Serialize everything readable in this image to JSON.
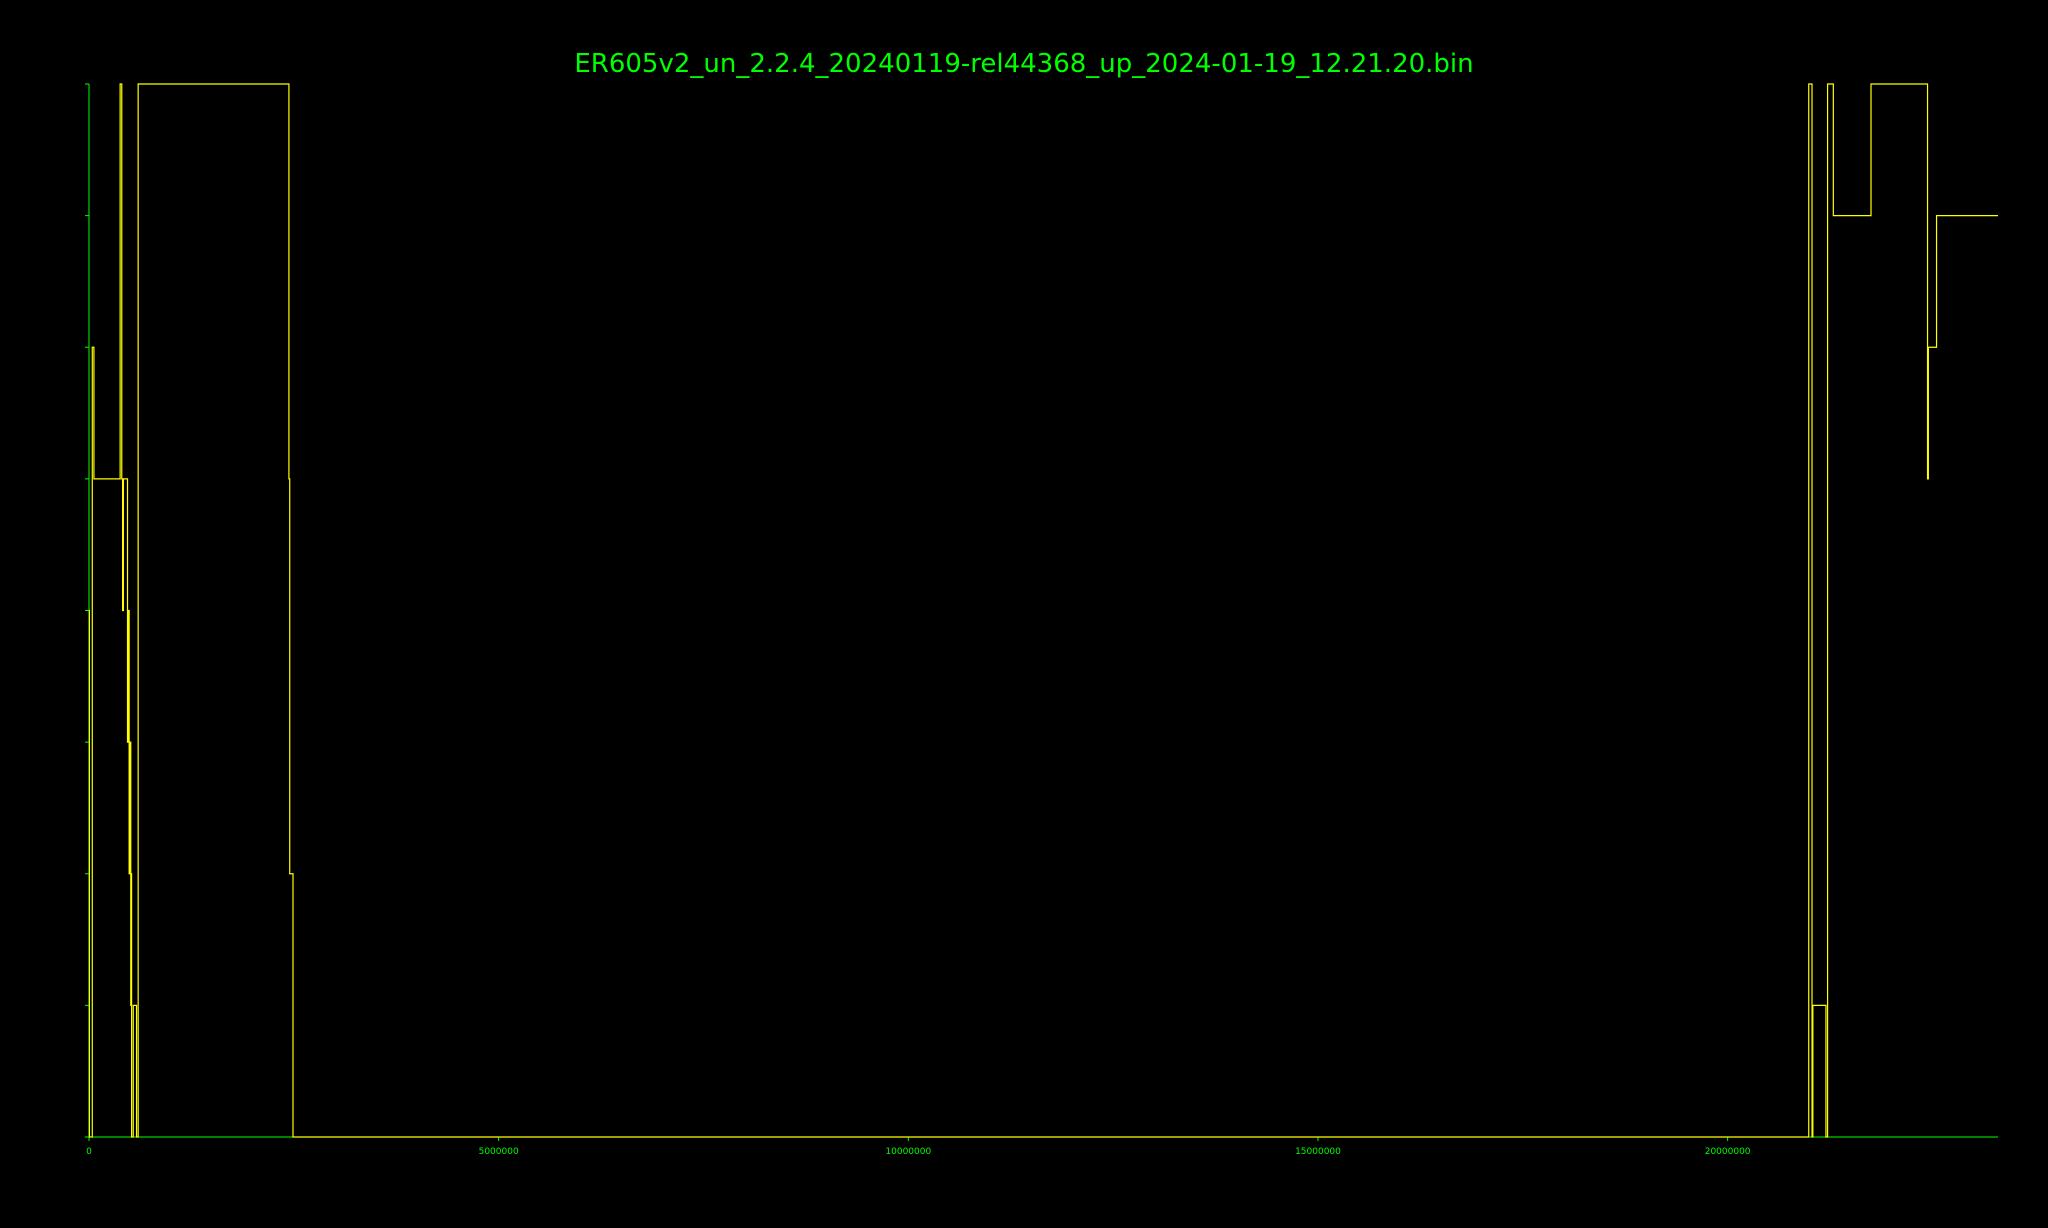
{
  "chart_data": {
    "type": "line",
    "title": "ER605v2_un_2.2.4_20240119-rel44368_up_2024-01-19_12.21.20.bin",
    "xlabel": "",
    "ylabel": "",
    "xlim": [
      0,
      23300000
    ],
    "ylim": [
      0,
      8
    ],
    "x_ticks": [
      0,
      5000000,
      10000000,
      15000000,
      20000000
    ],
    "x_tick_labels": [
      "0",
      "5000000",
      "10000000",
      "15000000",
      "20000000"
    ],
    "y_ticks": [
      0,
      1,
      2,
      3,
      4,
      5,
      6,
      7,
      8
    ],
    "grid": false,
    "legend": "none",
    "colors": {
      "background": "#000000",
      "axis": "#00ff00",
      "title": "#00ff00",
      "series": "#ffff00"
    },
    "series": [
      {
        "x": [
          0,
          5000,
          5000,
          40000,
          40000,
          60000,
          60000,
          380000,
          380000,
          400000,
          400000,
          410000,
          410000,
          420000,
          420000,
          470000,
          470000,
          480000,
          480000,
          490000,
          490000,
          500000,
          500000,
          510000,
          510000,
          515000,
          515000,
          520000,
          520000,
          540000,
          540000,
          580000,
          580000,
          600000,
          600000,
          2440000,
          2440000,
          2450000,
          2450000,
          2490000,
          2490000,
          20990000,
          20990000,
          21030000,
          21030000,
          21040000,
          21040000,
          21200000,
          21200000,
          21220000,
          21220000,
          21290000,
          21290000,
          21750000,
          21750000,
          22440000,
          22440000,
          22450000,
          22450000,
          22550000,
          22550000,
          23300000
        ],
        "y": [
          4,
          4,
          0,
          0,
          6,
          6,
          5,
          5,
          8,
          8,
          5,
          5,
          4,
          4,
          5,
          5,
          3,
          3,
          4,
          4,
          2,
          2,
          3,
          3,
          1,
          1,
          2,
          2,
          0,
          0,
          1,
          1,
          0,
          0,
          8,
          8,
          5,
          5,
          2,
          2,
          0,
          0,
          8,
          8,
          0,
          0,
          1,
          1,
          0,
          0,
          8,
          8,
          7,
          7,
          8,
          8,
          5,
          5,
          6,
          6,
          7,
          7
        ]
      }
    ]
  }
}
